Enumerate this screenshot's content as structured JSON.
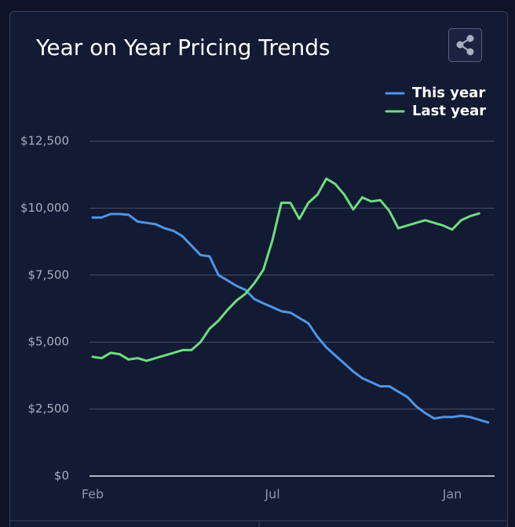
{
  "chart_data": {
    "type": "line",
    "title": "Year on Year Pricing Trends",
    "categories": [
      "Feb",
      null,
      null,
      null,
      null,
      null,
      null,
      null,
      null,
      null,
      null,
      null,
      null,
      null,
      null,
      null,
      null,
      null,
      null,
      null,
      "Jul",
      null,
      null,
      null,
      null,
      null,
      null,
      null,
      null,
      null,
      null,
      null,
      null,
      null,
      null,
      null,
      null,
      null,
      null,
      null,
      "Jan",
      null,
      null,
      null,
      null
    ],
    "series": [
      {
        "name": "This year",
        "color": "#4f95e6",
        "values": [
          9650,
          9650,
          9780,
          9780,
          9750,
          9500,
          9450,
          9400,
          9250,
          9150,
          8950,
          8600,
          8250,
          8200,
          7500,
          7300,
          7100,
          6950,
          6600,
          6450,
          6300,
          6150,
          6100,
          5900,
          5700,
          5200,
          4800,
          4500,
          4200,
          3900,
          3650,
          3500,
          3350,
          3350,
          3150,
          2950,
          2600,
          2350,
          2150,
          2200,
          2200,
          2250,
          2200,
          2100,
          2000
        ]
      },
      {
        "name": "Last year",
        "color": "#6fdc7f",
        "values": [
          4450,
          4400,
          4600,
          4550,
          4350,
          4400,
          4300,
          4400,
          4500,
          4600,
          4700,
          4700,
          5000,
          5500,
          5800,
          6200,
          6550,
          6800,
          7200,
          7700,
          8800,
          10200,
          10200,
          9600,
          10200,
          10500,
          11100,
          10900,
          10500,
          9950,
          10400,
          10250,
          10300,
          9900,
          9250,
          9350,
          9450,
          9550,
          9450,
          9350,
          9200,
          9550,
          9700,
          9800,
          null
        ]
      }
    ],
    "ylim": [
      0,
      12500
    ],
    "yticks": [
      {
        "value": 0,
        "label": "$0"
      },
      {
        "value": 2500,
        "label": "$2,500"
      },
      {
        "value": 5000,
        "label": "$5,000"
      },
      {
        "value": 7500,
        "label": "$7,500"
      },
      {
        "value": 10000,
        "label": "$10,000"
      },
      {
        "value": 12500,
        "label": "$12,500"
      }
    ],
    "grid": true,
    "legend": "top-right"
  }
}
